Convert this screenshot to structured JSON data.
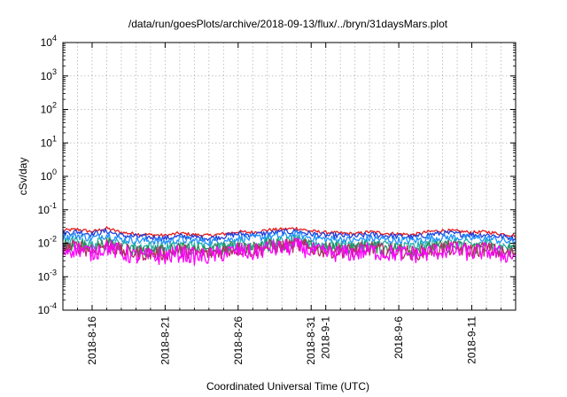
{
  "chart_data": {
    "type": "line",
    "title": "/data/run/goesPlots/archive/2018-09-13/flux/../bryn/31daysMars.plot",
    "xlabel": "Coordinated Universal Time (UTC)",
    "ylabel": "cSv/day",
    "y_scale": "log",
    "ylim": [
      0.0001,
      10000
    ],
    "xlim": [
      "2018-08-14",
      "2018-09-14"
    ],
    "grid": true,
    "legend": "none",
    "y_ticks": [
      {
        "base": "10",
        "exp": "-4",
        "value": 0.0001
      },
      {
        "base": "10",
        "exp": "-3",
        "value": 0.001
      },
      {
        "base": "10",
        "exp": "-2",
        "value": 0.01
      },
      {
        "base": "10",
        "exp": "-1",
        "value": 0.1
      },
      {
        "base": "10",
        "exp": "0",
        "value": 1
      },
      {
        "base": "10",
        "exp": "1",
        "value": 10
      },
      {
        "base": "10",
        "exp": "2",
        "value": 100
      },
      {
        "base": "10",
        "exp": "3",
        "value": 1000
      },
      {
        "base": "10",
        "exp": "4",
        "value": 10000
      }
    ],
    "x_ticks": [
      {
        "label": "2018-8-16",
        "date": "2018-08-16"
      },
      {
        "label": "2018-8-21",
        "date": "2018-08-21"
      },
      {
        "label": "2018-8-26",
        "date": "2018-08-26"
      },
      {
        "label": "2018-8-31",
        "date": "2018-08-31"
      },
      {
        "label": "2018-9-1",
        "date": "2018-09-01"
      },
      {
        "label": "2018-9-6",
        "date": "2018-09-06"
      },
      {
        "label": "2018-9-11",
        "date": "2018-09-11"
      }
    ],
    "x": [
      "2018-08-14",
      "2018-08-15",
      "2018-08-16",
      "2018-08-17",
      "2018-08-18",
      "2018-08-19",
      "2018-08-20",
      "2018-08-21",
      "2018-08-22",
      "2018-08-23",
      "2018-08-24",
      "2018-08-25",
      "2018-08-26",
      "2018-08-27",
      "2018-08-28",
      "2018-08-29",
      "2018-08-30",
      "2018-08-31",
      "2018-09-01",
      "2018-09-02",
      "2018-09-03",
      "2018-09-04",
      "2018-09-05",
      "2018-09-06",
      "2018-09-07",
      "2018-09-08",
      "2018-09-09",
      "2018-09-10",
      "2018-09-11",
      "2018-09-12",
      "2018-09-13",
      "2018-09-14"
    ],
    "series": [
      {
        "color": "#e41a1c",
        "values": [
          0.024,
          0.026,
          0.022,
          0.028,
          0.021,
          0.019,
          0.018,
          0.017,
          0.02,
          0.018,
          0.017,
          0.019,
          0.022,
          0.021,
          0.025,
          0.026,
          0.028,
          0.023,
          0.021,
          0.02,
          0.019,
          0.022,
          0.02,
          0.019,
          0.018,
          0.022,
          0.024,
          0.023,
          0.021,
          0.022,
          0.019,
          0.017
        ]
      },
      {
        "color": "#1f3fdc",
        "values": [
          0.02,
          0.022,
          0.019,
          0.023,
          0.017,
          0.016,
          0.015,
          0.014,
          0.016,
          0.015,
          0.014,
          0.016,
          0.019,
          0.018,
          0.02,
          0.021,
          0.023,
          0.019,
          0.017,
          0.017,
          0.016,
          0.018,
          0.017,
          0.016,
          0.015,
          0.018,
          0.02,
          0.019,
          0.018,
          0.018,
          0.016,
          0.014
        ]
      },
      {
        "color": "#1e90ff",
        "values": [
          0.015,
          0.017,
          0.014,
          0.018,
          0.013,
          0.012,
          0.012,
          0.011,
          0.013,
          0.012,
          0.011,
          0.012,
          0.014,
          0.014,
          0.016,
          0.016,
          0.018,
          0.015,
          0.013,
          0.013,
          0.012,
          0.014,
          0.013,
          0.012,
          0.012,
          0.014,
          0.015,
          0.015,
          0.014,
          0.014,
          0.012,
          0.011
        ]
      },
      {
        "color": "#20b2aa",
        "values": [
          0.01,
          0.011,
          0.009,
          0.012,
          0.009,
          0.008,
          0.008,
          0.007,
          0.009,
          0.008,
          0.008,
          0.008,
          0.01,
          0.009,
          0.011,
          0.011,
          0.012,
          0.01,
          0.009,
          0.009,
          0.008,
          0.01,
          0.009,
          0.008,
          0.008,
          0.009,
          0.01,
          0.01,
          0.009,
          0.01,
          0.008,
          0.008
        ]
      },
      {
        "color": "#2e8b57",
        "values": [
          0.008,
          0.009,
          0.007,
          0.01,
          0.007,
          0.006,
          0.006,
          0.006,
          0.007,
          0.006,
          0.006,
          0.007,
          0.008,
          0.007,
          0.009,
          0.009,
          0.01,
          0.008,
          0.007,
          0.007,
          0.007,
          0.008,
          0.007,
          0.007,
          0.006,
          0.007,
          0.008,
          0.008,
          0.007,
          0.008,
          0.006,
          0.006
        ]
      },
      {
        "color": "#b03060",
        "values": [
          0.007,
          0.008,
          0.006,
          0.009,
          0.006,
          0.005,
          0.005,
          0.005,
          0.006,
          0.005,
          0.005,
          0.006,
          0.007,
          0.006,
          0.008,
          0.008,
          0.009,
          0.007,
          0.006,
          0.006,
          0.006,
          0.007,
          0.006,
          0.006,
          0.005,
          0.006,
          0.007,
          0.007,
          0.006,
          0.007,
          0.005,
          0.005
        ]
      },
      {
        "color": "#ff00ff",
        "values": [
          0.006,
          0.007,
          0.005,
          0.008,
          0.005,
          0.004,
          0.004,
          0.004,
          0.005,
          0.004,
          0.004,
          0.005,
          0.006,
          0.005,
          0.007,
          0.007,
          0.008,
          0.006,
          0.005,
          0.005,
          0.005,
          0.006,
          0.005,
          0.005,
          0.0045,
          0.005,
          0.006,
          0.006,
          0.005,
          0.006,
          0.0045,
          0.0045
        ]
      }
    ]
  }
}
